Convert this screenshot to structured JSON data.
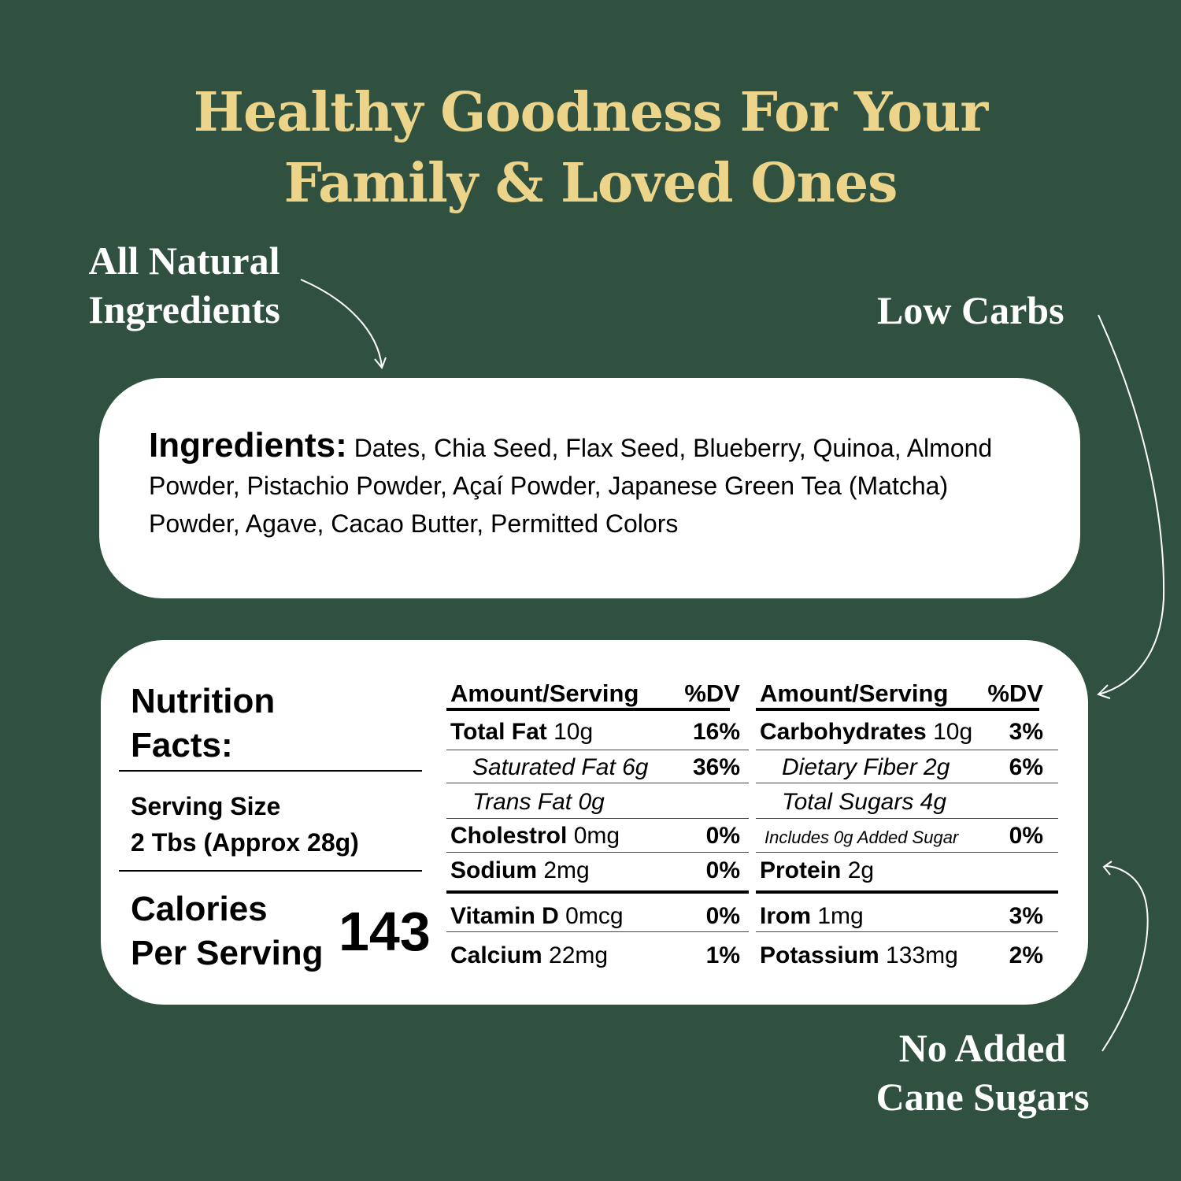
{
  "headline": {
    "line1": "Healthy Goodness For Your",
    "line2": "Family & Loved Ones"
  },
  "callouts": {
    "natural": [
      "All Natural",
      "Ingredients"
    ],
    "low_carbs": "Low Carbs",
    "no_sugar": [
      "No Added",
      "Cane Sugars"
    ]
  },
  "ingredients": {
    "label": "Ingredients:",
    "text": " Dates, Chia Seed, Flax Seed, Blueberry, Quinoa, Almond Powder, Pistachio Powder, Açaí Powder, Japanese Green Tea (Matcha) Powder, Agave, Cacao Butter, Permitted Colors"
  },
  "nutrition": {
    "title": [
      "Nutrition",
      "Facts:"
    ],
    "serving_label": "Serving Size",
    "serving_value": "2 Tbs (Approx 28g)",
    "calories_label": [
      "Calories",
      "Per Serving"
    ],
    "calories": "143",
    "header": {
      "amount": "Amount/Serving",
      "dv": "%DV"
    },
    "left": [
      {
        "bold": "Total Fat",
        "value": " 10g",
        "dv": "16%"
      },
      {
        "bold": "",
        "value": "Saturated Fat 6g",
        "dv": "36%",
        "italic": true
      },
      {
        "bold": "",
        "value": "Trans Fat 0g",
        "dv": "",
        "italic": true
      },
      {
        "bold": "Cholestrol",
        "value": " 0mg",
        "dv": "0%"
      },
      {
        "bold": "Sodium",
        "value": " 2mg",
        "dv": "0%"
      },
      {
        "bold": "Vitamin D",
        "value": " 0mcg",
        "dv": "0%"
      },
      {
        "bold": "Calcium",
        "value": " 22mg",
        "dv": "1%"
      }
    ],
    "right": [
      {
        "bold": "Carbohydrates",
        "value": " 10g",
        "dv": "3%"
      },
      {
        "bold": "",
        "value": "Dietary Fiber 2g",
        "dv": "6%",
        "italic": true
      },
      {
        "bold": "",
        "value": "Total Sugars 4g",
        "dv": "",
        "italic": true
      },
      {
        "bold": "",
        "value": "Includes 0g Added Sugar",
        "dv": "0%",
        "italic": true
      },
      {
        "bold": "Protein",
        "value": " 2g",
        "dv": ""
      },
      {
        "bold": "Irom",
        "value": " 1mg",
        "dv": "3%"
      },
      {
        "bold": "Potassium",
        "value": " 133mg",
        "dv": "2%"
      }
    ]
  },
  "colors": {
    "background": "#30513f",
    "headline": "#ecd48a",
    "card": "#ffffff"
  }
}
